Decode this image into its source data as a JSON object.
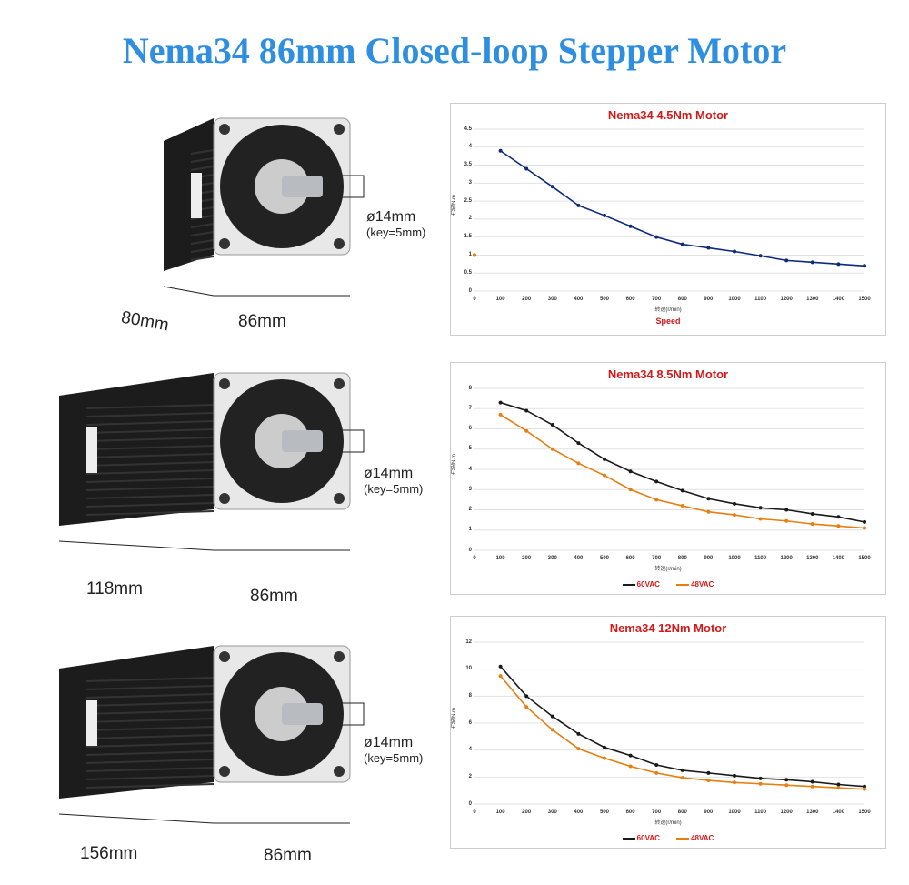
{
  "title": "Nema34 86mm Closed-loop Stepper Motor",
  "motors": [
    {
      "length": "80mm",
      "width": "86mm",
      "shaft": "ø14mm",
      "key": "(key=5mm)"
    },
    {
      "length": "118mm",
      "width": "86mm",
      "shaft": "ø14mm",
      "key": "(key=5mm)"
    },
    {
      "length": "156mm",
      "width": "86mm",
      "shaft": "ø14mm",
      "key": "(key=5mm)"
    }
  ],
  "colors": {
    "title": "#2e8fe0",
    "chart_title": "#d21a1a",
    "series_60": "#1a1a1a",
    "series_48": "#e67e10",
    "series_single": "#0d2a7a"
  },
  "chart_data": [
    {
      "type": "line",
      "title": "Nema34 4.5Nm Motor",
      "xlabel": "转速(r/min)",
      "xlabel2": "Speed",
      "ylabel": "力矩N.m",
      "ylim": [
        0,
        4.5
      ],
      "yticks": [
        "0",
        "0.5",
        "1",
        "1.5",
        "2",
        "2.5",
        "3",
        "3.5",
        "4",
        "4.5"
      ],
      "xticks": [
        "0",
        "100",
        "200",
        "300",
        "400",
        "500",
        "600",
        "700",
        "800",
        "900",
        "1000",
        "1100",
        "1200",
        "1300",
        "1400",
        "1500"
      ],
      "grid": true,
      "x": [
        100,
        200,
        300,
        400,
        500,
        600,
        700,
        800,
        900,
        1000,
        1100,
        1200,
        1300,
        1400,
        1500
      ],
      "series": [
        {
          "values": [
            3.9,
            3.4,
            2.9,
            2.38,
            2.1,
            1.8,
            1.5,
            1.3,
            1.2,
            1.1,
            0.98,
            0.85,
            0.8,
            0.75,
            0.7
          ],
          "color": "#0d2a7a"
        }
      ],
      "extra_points": [
        {
          "x": 0,
          "y": 1,
          "color": "#e67e10"
        }
      ]
    },
    {
      "type": "line",
      "title": "Nema34 8.5Nm Motor",
      "xlabel": "转速(r/min)",
      "ylabel": "力矩N.m",
      "ylim": [
        0,
        8
      ],
      "yticks": [
        "0",
        "1",
        "2",
        "3",
        "4",
        "5",
        "6",
        "7",
        "8"
      ],
      "xticks": [
        "0",
        "100",
        "200",
        "300",
        "400",
        "500",
        "600",
        "700",
        "800",
        "900",
        "1000",
        "1100",
        "1200",
        "1300",
        "1400",
        "1500"
      ],
      "grid": true,
      "legend": "bottom",
      "x": [
        100,
        200,
        300,
        400,
        500,
        600,
        700,
        800,
        900,
        1000,
        1100,
        1200,
        1300,
        1400,
        1500
      ],
      "series": [
        {
          "name": "60VAC",
          "values": [
            7.3,
            6.9,
            6.2,
            5.3,
            4.5,
            3.9,
            3.4,
            2.95,
            2.55,
            2.3,
            2.1,
            2.0,
            1.8,
            1.65,
            1.4
          ],
          "color": "#1a1a1a"
        },
        {
          "name": "48VAC",
          "values": [
            6.7,
            5.9,
            5.0,
            4.3,
            3.7,
            3.0,
            2.5,
            2.2,
            1.9,
            1.75,
            1.55,
            1.45,
            1.3,
            1.2,
            1.1
          ],
          "color": "#e67e10"
        }
      ]
    },
    {
      "type": "line",
      "title": "Nema34 12Nm Motor",
      "xlabel": "转速(r/min)",
      "ylabel": "力矩N.m",
      "ylim": [
        0,
        12
      ],
      "yticks": [
        "0",
        "2",
        "4",
        "6",
        "8",
        "10",
        "12"
      ],
      "xticks": [
        "0",
        "100",
        "200",
        "300",
        "400",
        "500",
        "600",
        "700",
        "800",
        "900",
        "1000",
        "1100",
        "1200",
        "1300",
        "1400",
        "1500"
      ],
      "grid": true,
      "legend": "bottom",
      "x": [
        100,
        200,
        300,
        400,
        500,
        600,
        700,
        800,
        900,
        1000,
        1100,
        1200,
        1300,
        1400,
        1500
      ],
      "series": [
        {
          "name": "60VAC",
          "values": [
            10.2,
            8.0,
            6.5,
            5.2,
            4.2,
            3.6,
            2.9,
            2.5,
            2.3,
            2.1,
            1.9,
            1.8,
            1.65,
            1.45,
            1.3
          ],
          "color": "#1a1a1a"
        },
        {
          "name": "48VAC",
          "values": [
            9.5,
            7.2,
            5.5,
            4.1,
            3.4,
            2.8,
            2.3,
            1.95,
            1.75,
            1.6,
            1.5,
            1.4,
            1.3,
            1.2,
            1.1
          ],
          "color": "#e67e10"
        }
      ]
    }
  ]
}
